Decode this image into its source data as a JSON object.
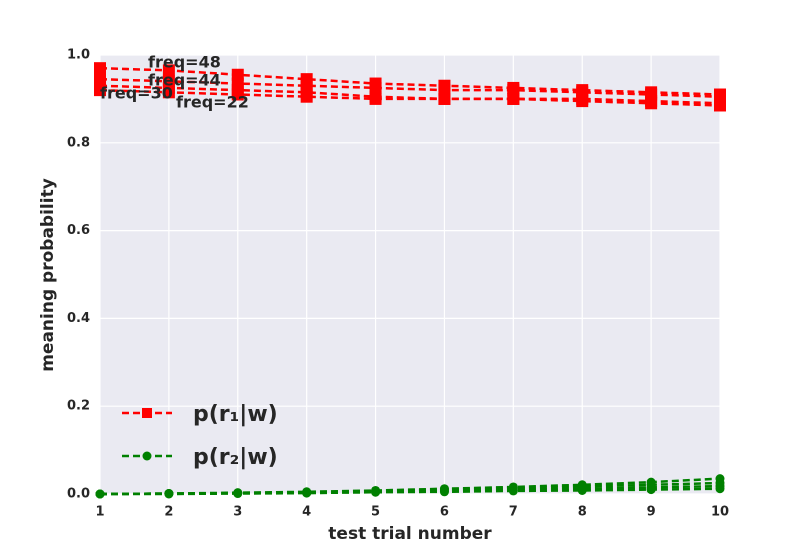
{
  "chart_data": {
    "type": "line",
    "xlabel": "test trial number",
    "ylabel": "meaning probability",
    "x": [
      1,
      2,
      3,
      4,
      5,
      6,
      7,
      8,
      9,
      10
    ],
    "xlim": [
      1,
      10
    ],
    "ylim": [
      0,
      1
    ],
    "xticks": [
      1,
      2,
      3,
      4,
      5,
      6,
      7,
      8,
      9,
      10
    ],
    "yticks": [
      {
        "value": 0,
        "label": "0.0"
      },
      {
        "value": 0.2,
        "label": "0.2"
      },
      {
        "value": 0.4,
        "label": "0.4"
      },
      {
        "value": 0.6,
        "label": "0.6"
      },
      {
        "value": 0.8,
        "label": "0.8"
      },
      {
        "value": 1,
        "label": "1.0"
      }
    ],
    "grid": true,
    "legend": "lower left",
    "series": [
      {
        "name": "p(r₁|w)",
        "color": "#ff0000",
        "marker": "square",
        "lines": [
          {
            "label": "freq=48",
            "values": [
              0.97,
              0.965,
              0.955,
              0.945,
              0.935,
              0.93,
              0.925,
              0.92,
              0.915,
              0.91
            ]
          },
          {
            "label": "freq=44",
            "values": [
              0.945,
              0.94,
              0.935,
              0.93,
              0.925,
              0.92,
              0.92,
              0.915,
              0.91,
              0.905
            ]
          },
          {
            "label": "freq=30",
            "values": [
              0.93,
              0.925,
              0.92,
              0.915,
              0.905,
              0.9,
              0.9,
              0.9,
              0.895,
              0.89
            ]
          },
          {
            "label": "freq=22",
            "values": [
              0.92,
              0.915,
              0.91,
              0.905,
              0.9,
              0.9,
              0.9,
              0.895,
              0.89,
              0.885
            ]
          }
        ]
      },
      {
        "name": "p(r₂|w)",
        "color": "#008000",
        "marker": "circle",
        "lines": [
          {
            "values": [
              0,
              0.001,
              0.003,
              0.005,
              0.008,
              0.012,
              0.016,
              0.021,
              0.027,
              0.035
            ]
          },
          {
            "values": [
              0,
              0.001,
              0.002,
              0.004,
              0.007,
              0.01,
              0.013,
              0.017,
              0.021,
              0.025
            ]
          },
          {
            "values": [
              0,
              0.001,
              0.002,
              0.003,
              0.005,
              0.007,
              0.009,
              0.012,
              0.015,
              0.018
            ]
          },
          {
            "values": [
              0,
              0,
              0.001,
              0.002,
              0.004,
              0.005,
              0.007,
              0.008,
              0.01,
              0.012
            ]
          }
        ]
      }
    ]
  }
}
